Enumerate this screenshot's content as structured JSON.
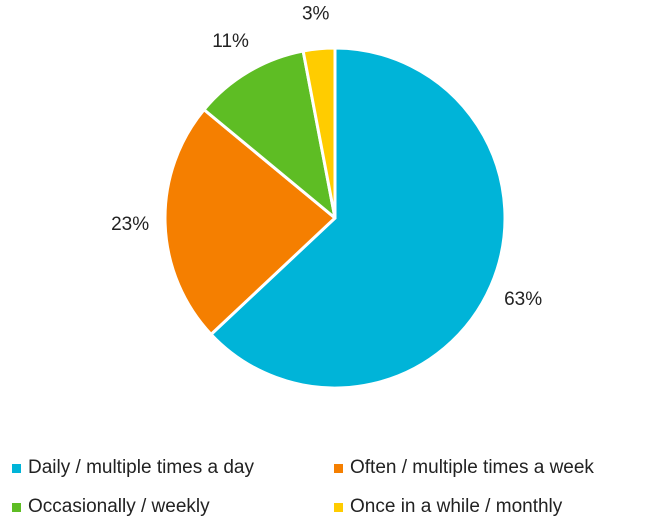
{
  "chart_data": {
    "type": "pie",
    "title": "",
    "slices": [
      {
        "label": "Daily / multiple times a day",
        "value": 63,
        "value_label": "63%",
        "color": "#00B4D8"
      },
      {
        "label": "Often / multiple times a week",
        "value": 23,
        "value_label": "23%",
        "color": "#F57F00"
      },
      {
        "label": "Occasionally / weekly",
        "value": 11,
        "value_label": "11%",
        "color": "#5EBD24"
      },
      {
        "label": "Once in a while / monthly",
        "value": 3,
        "value_label": "3%",
        "color": "#FFCC00"
      }
    ],
    "start_direction": "top",
    "direction": "clockwise",
    "legend_position": "bottom"
  }
}
